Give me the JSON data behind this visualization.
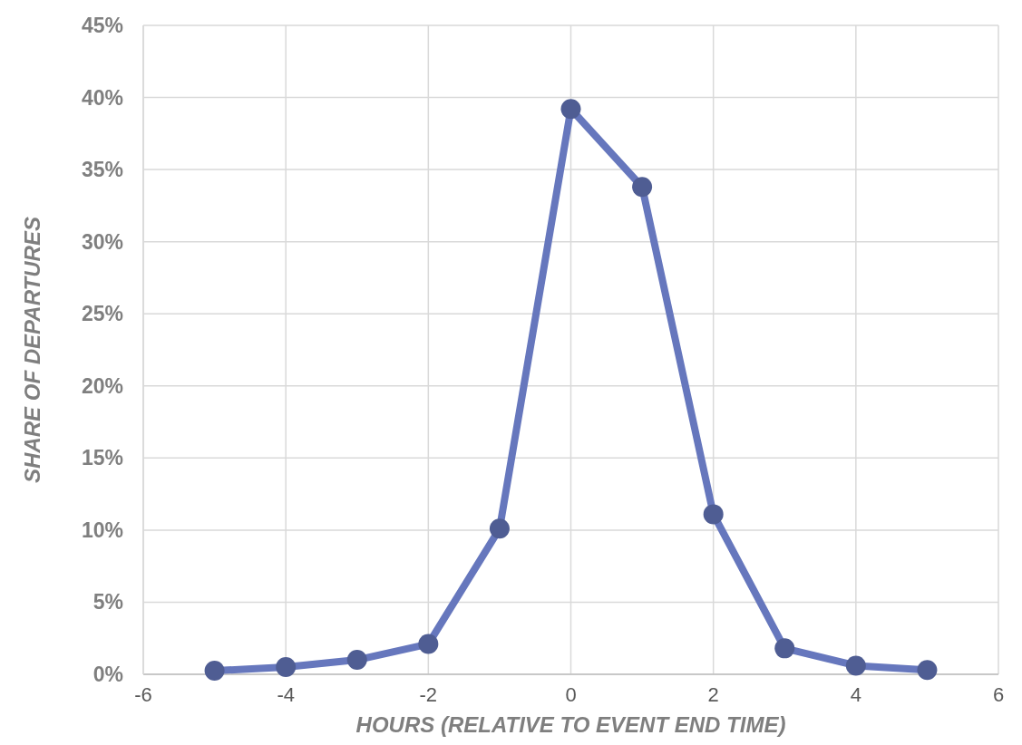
{
  "chart_data": {
    "type": "line",
    "xlabel": "HOURS (RELATIVE TO EVENT END TIME)",
    "ylabel": "SHARE OF DEPARTURES",
    "x": [
      -5,
      -4,
      -3,
      -2,
      -1,
      0,
      1,
      2,
      3,
      4,
      5
    ],
    "series": [
      {
        "color": "#6677bd",
        "values": [
          0.25,
          0.5,
          1.0,
          2.1,
          10.1,
          39.2,
          33.8,
          11.1,
          1.8,
          0.6,
          0.3
        ]
      }
    ],
    "xlim": [
      -6,
      6
    ],
    "xticks": [
      -6,
      -4,
      -2,
      0,
      2,
      4,
      6
    ],
    "ylim": [
      0,
      45
    ],
    "yticks": [
      {
        "value": 0,
        "label": "0%"
      },
      {
        "value": 5,
        "label": "5%"
      },
      {
        "value": 10,
        "label": "10%"
      },
      {
        "value": 15,
        "label": "15%"
      },
      {
        "value": 20,
        "label": "20%"
      },
      {
        "value": 25,
        "label": "25%"
      },
      {
        "value": 30,
        "label": "30%"
      },
      {
        "value": 35,
        "label": "35%"
      },
      {
        "value": 40,
        "label": "40%"
      },
      {
        "value": 45,
        "label": "45%"
      }
    ],
    "grid": true,
    "marker": "circle",
    "line_style": "solid"
  }
}
